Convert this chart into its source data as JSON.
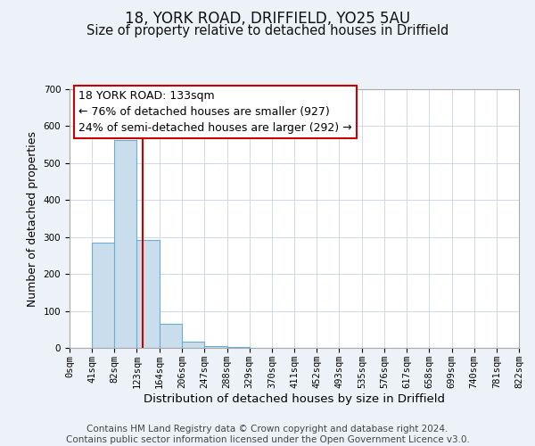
{
  "title": "18, YORK ROAD, DRIFFIELD, YO25 5AU",
  "subtitle": "Size of property relative to detached houses in Driffield",
  "xlabel": "Distribution of detached houses by size in Driffield",
  "ylabel": "Number of detached properties",
  "bin_edges": [
    0,
    41,
    82,
    123,
    164,
    206,
    247,
    288,
    329,
    370,
    411,
    452,
    493,
    535,
    576,
    617,
    658,
    699,
    740,
    781,
    822
  ],
  "bar_heights": [
    0,
    284,
    562,
    293,
    65,
    18,
    5,
    2,
    1,
    0,
    0,
    0,
    0,
    0,
    0,
    0,
    0,
    0,
    0,
    0
  ],
  "bar_color": "#c9dded",
  "bar_edgecolor": "#6aaed6",
  "bar_linewidth": 0.8,
  "vline_x": 133,
  "vline_color": "#cc0000",
  "ylim": [
    0,
    700
  ],
  "yticks": [
    0,
    100,
    200,
    300,
    400,
    500,
    600,
    700
  ],
  "annotation_text": "18 YORK ROAD: 133sqm\n← 76% of detached houses are smaller (927)\n24% of semi-detached houses are larger (292) →",
  "annotation_box_color": "#ffffff",
  "annotation_box_edgecolor": "#cc0000",
  "footer_text": "Contains HM Land Registry data © Crown copyright and database right 2024.\nContains public sector information licensed under the Open Government Licence v3.0.",
  "grid_color": "#d0d8e8",
  "background_color": "#edf2f8",
  "plot_background": "#ffffff",
  "title_fontsize": 12,
  "subtitle_fontsize": 10.5,
  "xlabel_fontsize": 9.5,
  "ylabel_fontsize": 9,
  "tick_fontsize": 7.5,
  "annotation_fontsize": 9,
  "footer_fontsize": 7.5
}
